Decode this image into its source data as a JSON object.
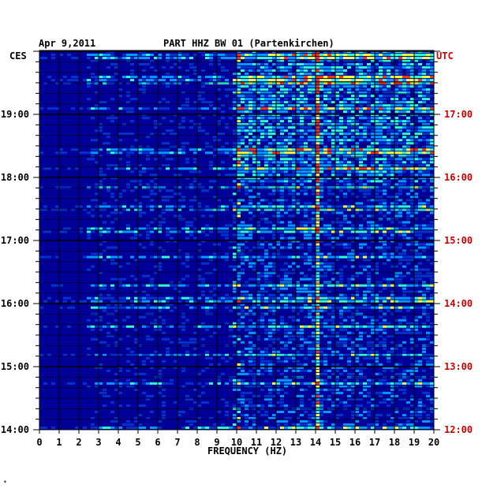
{
  "chart_data": {
    "type": "heatmap",
    "date": "Apr 9,2011",
    "title": "PART HHZ BW 01 (Partenkirchen)",
    "left_axis_title": "CES",
    "right_axis_title": "UTC",
    "xlabel": "FREQUENCY (HZ)",
    "xlim": [
      0,
      20
    ],
    "x_ticks": [
      "0",
      "1",
      "2",
      "3",
      "4",
      "5",
      "6",
      "7",
      "8",
      "9",
      "10",
      "11",
      "12",
      "13",
      "14",
      "15",
      "16",
      "17",
      "18",
      "19",
      "20"
    ],
    "left_time_ticks": [
      "19:00",
      "18:00",
      "17:00",
      "16:00",
      "15:00",
      "14:00"
    ],
    "right_time_ticks": [
      "17:00",
      "16:00",
      "15:00",
      "14:00",
      "13:00",
      "12:00"
    ],
    "time_range_ces": [
      "14:00",
      "19:50"
    ],
    "colors": {
      "background": "#000099",
      "low": "#0033cc",
      "mid": "#0099ff",
      "high": "#33ffcc",
      "peak": "#ffff33",
      "max": "#ff3300",
      "axis_text": "#000000",
      "utc_text": "#cc0000",
      "gridline": "#000000"
    },
    "grid": true,
    "notable_features": [
      {
        "frequency_hz": 14.1,
        "description": "persistent narrow-band energy"
      },
      {
        "frequency_hz": 10.0,
        "description": "intermittent narrow-band energy"
      }
    ]
  },
  "footnote_mark": "*"
}
